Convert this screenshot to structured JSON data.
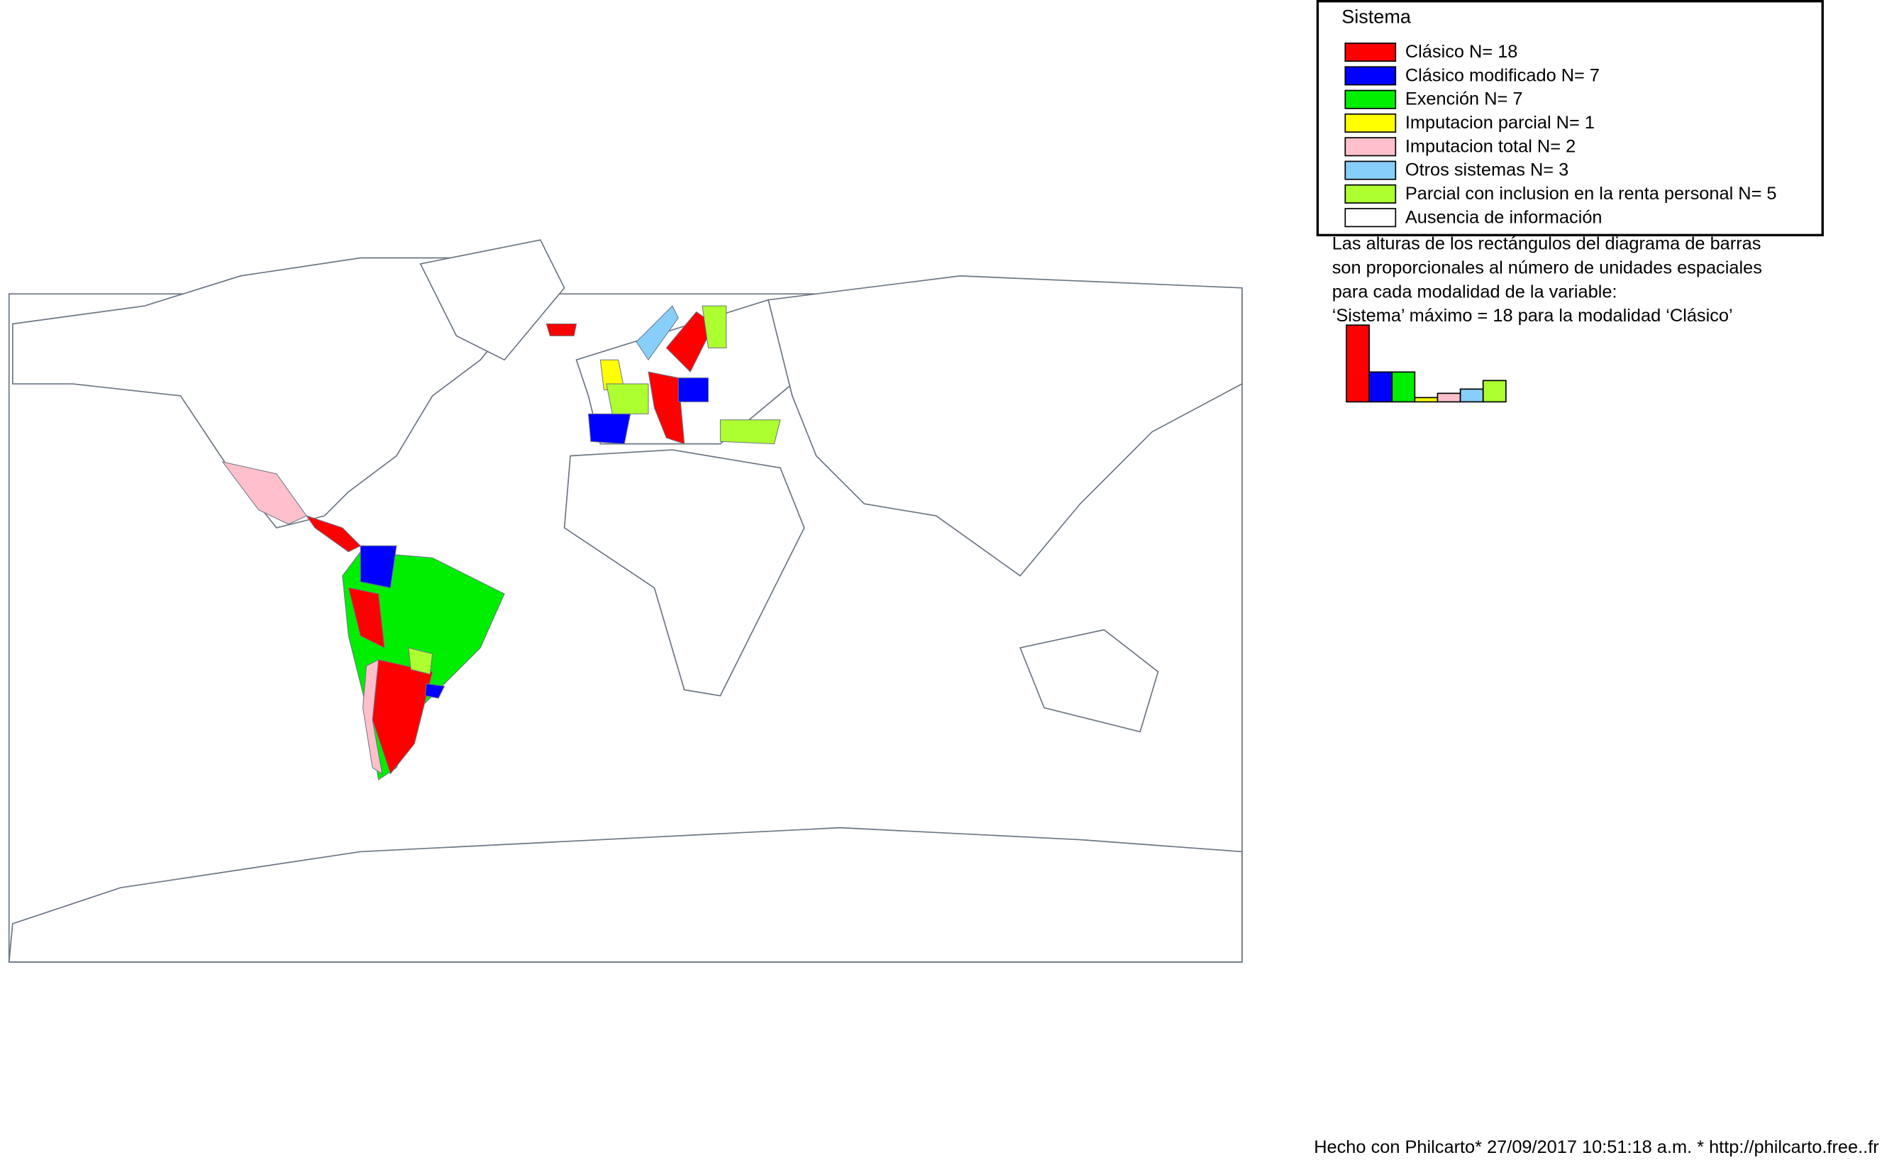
{
  "legend": {
    "title": "Sistema",
    "items": [
      {
        "label": "Clásico N= 18",
        "color": "#ff0000",
        "count": 18
      },
      {
        "label": "Clásico modificado N= 7",
        "color": "#0000ff",
        "count": 7
      },
      {
        "label": "Exención N= 7",
        "color": "#00ee00",
        "count": 7
      },
      {
        "label": "Imputacion parcial N= 1",
        "color": "#ffff00",
        "count": 1
      },
      {
        "label": "Imputacion total N= 2",
        "color": "#ffc0cb",
        "count": 2
      },
      {
        "label": "Otros sistemas N= 3",
        "color": "#87cefa",
        "count": 3
      },
      {
        "label": "Parcial con inclusion en la renta personal N= 5",
        "color": "#adff2f",
        "count": 5
      },
      {
        "label": "Ausencia de información",
        "color": "#ffffff"
      }
    ]
  },
  "note": [
    "Las alturas de los rectángulos del diagrama de barras",
    "son proporcionales al número de unidades espaciales",
    "para cada modalidad de la variable:",
    "‘Sistema’ máximo = 18 para la modalidad ‘Clásico’"
  ],
  "footer": "Hecho con Philcarto* 27/09/2017 10:51:18 a.m. * http://philcarto.free..fr"
}
